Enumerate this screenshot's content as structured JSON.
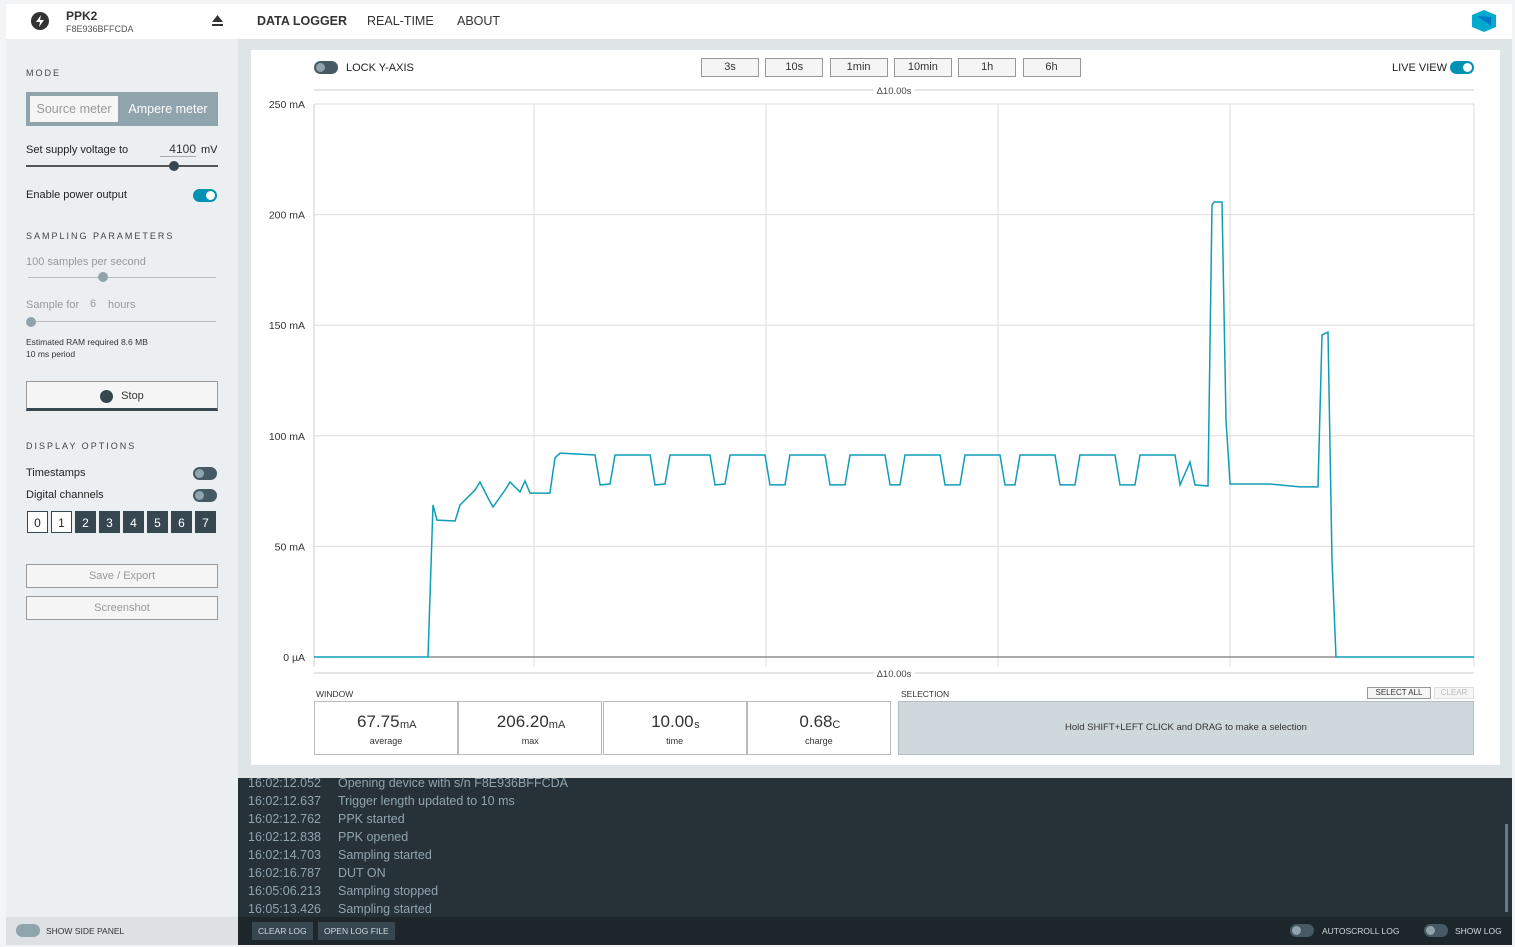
{
  "header": {
    "device": "PPK2",
    "serial": "F8E936BFFCDA",
    "tabs": [
      "DATA LOGGER",
      "REAL-TIME",
      "ABOUT"
    ]
  },
  "sidebar": {
    "mode_title": "MODE",
    "modes": [
      "Source meter",
      "Ampere meter"
    ],
    "voltage_label": "Set supply voltage to",
    "voltage_value": "4100",
    "voltage_unit": "mV",
    "power_label": "Enable power output",
    "sampling_title": "SAMPLING PARAMETERS",
    "rate_label": "100 samples per second",
    "sample_for": "Sample for",
    "sample_value": "6",
    "sample_unit": "hours",
    "ram_note": "Estimated RAM required 8.6 MB",
    "period_note": "10 ms period",
    "stop": "Stop",
    "display_title": "DISPLAY OPTIONS",
    "timestamps": "Timestamps",
    "digital": "Digital channels",
    "channels": [
      "0",
      "1",
      "2",
      "3",
      "4",
      "5",
      "6",
      "7"
    ],
    "save": "Save / Export",
    "screenshot": "Screenshot"
  },
  "toolbar": {
    "lock": "LOCK Y-AXIS",
    "windows": [
      "3s",
      "10s",
      "1min",
      "10min",
      "1h",
      "6h"
    ],
    "live": "LIVE VIEW"
  },
  "chart_data": {
    "type": "line",
    "span_label": "Δ10.00s",
    "color": "#0e9db8",
    "xlim": [
      0,
      10
    ],
    "ylim": [
      0,
      250
    ],
    "yticks": [
      {
        "value": 0,
        "label": "0 µA"
      },
      {
        "value": 50,
        "label": "50 mA"
      },
      {
        "value": 100,
        "label": "100 mA"
      },
      {
        "value": 150,
        "label": "150 mA"
      },
      {
        "value": 200,
        "label": "200 mA"
      },
      {
        "value": 250,
        "label": "250 mA"
      }
    ],
    "grid": true,
    "x": [
      0,
      0.983,
      1.026,
      1.06,
      1.216,
      1.259,
      1.388,
      1.431,
      1.5,
      1.543,
      1.647,
      1.69,
      1.776,
      1.819,
      1.862,
      2.034,
      2.078,
      2.121,
      2.422,
      2.466,
      2.552,
      2.595,
      2.897,
      2.94,
      3.026,
      3.069,
      3.414,
      3.457,
      3.543,
      3.586,
      3.888,
      3.931,
      4.06,
      4.103,
      4.405,
      4.448,
      4.578,
      4.621,
      4.922,
      4.966,
      5.052,
      5.095,
      5.397,
      5.44,
      5.569,
      5.612,
      5.914,
      5.957,
      6.043,
      6.086,
      6.388,
      6.431,
      6.56,
      6.603,
      6.905,
      6.948,
      7.078,
      7.121,
      7.422,
      7.466,
      7.552,
      7.595,
      7.707,
      7.741,
      7.759,
      7.828,
      7.862,
      7.897,
      8.241,
      8.5,
      8.655,
      8.69,
      8.741,
      8.776,
      8.81,
      10
    ],
    "values": [
      0,
      0,
      68.7,
      61.9,
      61.5,
      68.7,
      75.5,
      79.1,
      71.9,
      67.8,
      75.5,
      79.1,
      74.6,
      79.6,
      74.1,
      74.1,
      90,
      92.2,
      91.3,
      77.8,
      78.2,
      91.3,
      91.3,
      77.8,
      78.2,
      91.3,
      91.3,
      77.8,
      78.2,
      91.3,
      91.3,
      77.8,
      77.8,
      91.3,
      91.3,
      77.8,
      77.8,
      91.3,
      91.3,
      77.8,
      77.8,
      91.3,
      91.3,
      77.8,
      77.8,
      91.3,
      91.3,
      77.8,
      77.8,
      91.3,
      91.3,
      77.8,
      77.8,
      91.3,
      91.3,
      77.8,
      77.8,
      91.3,
      91.3,
      77.8,
      88.2,
      77.8,
      77.3,
      204.3,
      205.7,
      205.7,
      107.1,
      78.2,
      78.2,
      76.9,
      76.9,
      145.6,
      146.9,
      43.9,
      0,
      0
    ]
  },
  "stats": {
    "window_title": "WINDOW",
    "cells": [
      {
        "value": "67.75",
        "unit": "mA",
        "label": "average"
      },
      {
        "value": "206.20",
        "unit": "mA",
        "label": "max"
      },
      {
        "value": "10.00",
        "unit": "s",
        "label": "time"
      },
      {
        "value": "0.68",
        "unit": "C",
        "label": "charge"
      }
    ],
    "selection_title": "SELECTION",
    "select_all": "SELECT ALL",
    "clear": "CLEAR",
    "hint": "Hold SHIFT+LEFT CLICK and DRAG to make a selection"
  },
  "log": [
    {
      "time": "16:02:12.052",
      "message": "Opening device with s/n F8E936BFFCDA"
    },
    {
      "time": "16:02:12.637",
      "message": "Trigger length updated to 10 ms"
    },
    {
      "time": "16:02:12.762",
      "message": "PPK started"
    },
    {
      "time": "16:02:12.838",
      "message": "PPK opened"
    },
    {
      "time": "16:02:14.703",
      "message": "Sampling started"
    },
    {
      "time": "16:02:16.787",
      "message": "DUT ON"
    },
    {
      "time": "16:05:06.213",
      "message": "Sampling stopped"
    },
    {
      "time": "16:05:13.426",
      "message": "Sampling started"
    }
  ],
  "footer": {
    "side_panel": "SHOW SIDE PANEL",
    "clear_log": "CLEAR LOG",
    "open_log": "OPEN LOG FILE",
    "autoscroll": "AUTOSCROLL LOG",
    "show_log": "SHOW LOG"
  }
}
